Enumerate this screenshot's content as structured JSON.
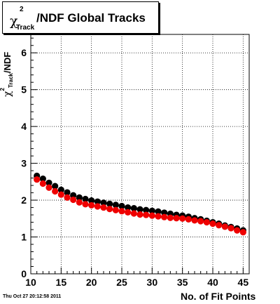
{
  "chart_data": {
    "type": "scatter",
    "title": "χ²Track/NDF  Global Tracks",
    "title_parts": {
      "symbol": "χ",
      "superscript": "2",
      "subscript": "Track",
      "text": "/NDF  Global Tracks"
    },
    "xlabel": "No. of Fit Points",
    "ylabel": "χ²Track/NDF",
    "ylabel_parts": {
      "symbol": "χ",
      "superscript": "2",
      "subscript": "Track",
      "text": "/NDF"
    },
    "xlim": [
      10,
      46
    ],
    "ylim": [
      0,
      6.5
    ],
    "xticks": [
      10,
      15,
      20,
      25,
      30,
      35,
      40,
      45
    ],
    "yticks": [
      0,
      1,
      2,
      3,
      4,
      5,
      6
    ],
    "grid": true,
    "series": [
      {
        "color": "#000000",
        "x": [
          11,
          12,
          13,
          14,
          15,
          16,
          17,
          18,
          19,
          20,
          21,
          22,
          23,
          24,
          25,
          26,
          27,
          28,
          29,
          30,
          31,
          32,
          33,
          34,
          35,
          36,
          37,
          38,
          39,
          40,
          41,
          42,
          43,
          44,
          45
        ],
        "y": [
          2.66,
          2.58,
          2.47,
          2.38,
          2.28,
          2.21,
          2.13,
          2.07,
          2.03,
          1.99,
          1.96,
          1.93,
          1.9,
          1.87,
          1.84,
          1.8,
          1.78,
          1.75,
          1.73,
          1.71,
          1.69,
          1.66,
          1.63,
          1.6,
          1.58,
          1.55,
          1.51,
          1.48,
          1.44,
          1.4,
          1.36,
          1.31,
          1.27,
          1.23,
          1.18
        ]
      },
      {
        "color": "#ee0000",
        "x": [
          11,
          12,
          13,
          14,
          15,
          16,
          17,
          18,
          19,
          20,
          21,
          22,
          23,
          24,
          25,
          26,
          27,
          28,
          29,
          30,
          31,
          32,
          33,
          34,
          35,
          36,
          37,
          38,
          39,
          40,
          41,
          42,
          43,
          44,
          45
        ],
        "y": [
          2.56,
          2.45,
          2.34,
          2.24,
          2.15,
          2.07,
          2.01,
          1.94,
          1.89,
          1.86,
          1.83,
          1.8,
          1.76,
          1.73,
          1.7,
          1.67,
          1.64,
          1.61,
          1.6,
          1.58,
          1.56,
          1.54,
          1.52,
          1.51,
          1.5,
          1.48,
          1.45,
          1.43,
          1.4,
          1.36,
          1.32,
          1.28,
          1.24,
          1.18,
          1.13
        ]
      }
    ]
  },
  "footer": "Thu Oct 27 20:12:58 2011"
}
